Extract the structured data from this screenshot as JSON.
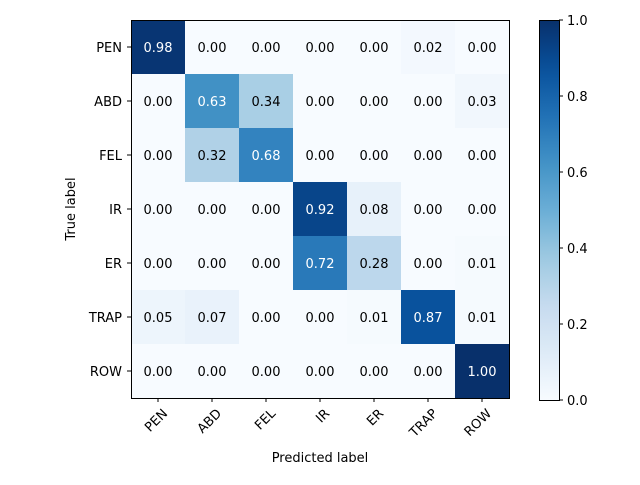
{
  "chart_data": {
    "type": "heatmap",
    "title": "",
    "xlabel": "Predicted label",
    "ylabel": "True label",
    "x_categories": [
      "PEN",
      "ABD",
      "FEL",
      "IR",
      "ER",
      "TRAP",
      "ROW"
    ],
    "y_categories": [
      "PEN",
      "ABD",
      "FEL",
      "IR",
      "ER",
      "TRAP",
      "ROW"
    ],
    "values": [
      [
        0.98,
        0.0,
        0.0,
        0.0,
        0.0,
        0.02,
        0.0
      ],
      [
        0.0,
        0.63,
        0.34,
        0.0,
        0.0,
        0.0,
        0.03
      ],
      [
        0.0,
        0.32,
        0.68,
        0.0,
        0.0,
        0.0,
        0.0
      ],
      [
        0.0,
        0.0,
        0.0,
        0.92,
        0.08,
        0.0,
        0.0
      ],
      [
        0.0,
        0.0,
        0.0,
        0.72,
        0.28,
        0.0,
        0.01
      ],
      [
        0.05,
        0.07,
        0.0,
        0.0,
        0.01,
        0.87,
        0.01
      ],
      [
        0.0,
        0.0,
        0.0,
        0.0,
        0.0,
        0.0,
        1.0
      ]
    ],
    "value_format": "2 decimals",
    "colormap": "Blues",
    "colorbar": {
      "range": [
        0.0,
        1.0
      ],
      "ticks": [
        0.0,
        0.2,
        0.4,
        0.6,
        0.8,
        1.0
      ],
      "tick_labels": [
        "0.0",
        "0.2",
        "0.4",
        "0.6",
        "0.8",
        "1.0"
      ]
    },
    "x_tick_rotation": "45 degrees",
    "grid": false,
    "colors": {
      "low": "#f7fbff",
      "high": "#08306b",
      "text_on_dark": "#ffffff",
      "text_on_light": "#000000"
    }
  }
}
